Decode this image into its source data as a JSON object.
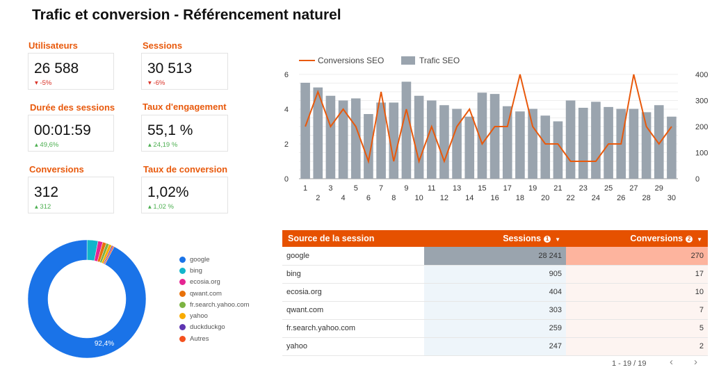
{
  "title": "Trafic et conversion - Référencement naturel",
  "kpis": [
    {
      "label": "Utilisateurs",
      "value": "26 588",
      "delta": "-5%",
      "arrow": "▾",
      "trend": "neg"
    },
    {
      "label": "Sessions",
      "value": "30 513",
      "delta": "-6%",
      "arrow": "▾",
      "trend": "neg"
    },
    {
      "label": "Durée des sessions",
      "value": "00:01:59",
      "delta": "49,6%",
      "arrow": "▴",
      "trend": "pos"
    },
    {
      "label": "Taux d'engagement",
      "value": "55,1 %",
      "delta": "24,19 %",
      "arrow": "▴",
      "trend": "pos"
    },
    {
      "label": "Conversions",
      "value": "312",
      "delta": "312",
      "arrow": "▴",
      "trend": "pos"
    },
    {
      "label": "Taux de conversion",
      "value": "1,02%",
      "delta": "1,02 %",
      "arrow": "▴",
      "trend": "pos"
    }
  ],
  "chart_data": [
    {
      "type": "bar",
      "x": [
        1,
        2,
        3,
        4,
        5,
        6,
        7,
        8,
        9,
        10,
        11,
        12,
        13,
        14,
        15,
        16,
        17,
        18,
        19,
        20,
        21,
        22,
        23,
        24,
        25,
        26,
        27,
        28,
        29,
        30
      ],
      "series": [
        {
          "name": "Conversions SEO",
          "type": "line",
          "axis": "left",
          "color": "#e8590c",
          "values": [
            3,
            5,
            3,
            4,
            3,
            1,
            5,
            1,
            4,
            1,
            3,
            1,
            3,
            4,
            2,
            3,
            3,
            6,
            3,
            2,
            2,
            1,
            1,
            1,
            2,
            2,
            6,
            3,
            2,
            3
          ]
        },
        {
          "name": "Trafic SEO",
          "type": "bar",
          "axis": "right",
          "color": "#9aa4ae",
          "values": [
            368,
            350,
            318,
            300,
            308,
            248,
            292,
            292,
            372,
            318,
            300,
            282,
            268,
            238,
            330,
            325,
            278,
            258,
            268,
            242,
            220,
            300,
            272,
            295,
            275,
            268,
            268,
            255,
            282,
            238
          ]
        }
      ],
      "left_ticks": [
        0,
        2,
        4,
        6
      ],
      "right_ticks": [
        0,
        100,
        200,
        300,
        400
      ],
      "ylim_left": [
        0,
        6
      ],
      "ylim_right": [
        0,
        400
      ],
      "legend": "top-left"
    },
    {
      "type": "pie",
      "donut": true,
      "categories": [
        "google",
        "bing",
        "ecosia.org",
        "qwant.com",
        "fr.search.yahoo.com",
        "yahoo",
        "duckduckgo",
        "Autres"
      ],
      "values": [
        92.4,
        3.0,
        1.3,
        1.0,
        0.8,
        0.8,
        0.35,
        0.35
      ],
      "colors": [
        "#1a73e8",
        "#12b5cb",
        "#e52592",
        "#e8710a",
        "#7cb342",
        "#f9ab00",
        "#5e35b1",
        "#f4511e"
      ],
      "slice_label": "92,4%"
    }
  ],
  "table": {
    "columns": [
      "Source de la session",
      "Sessions",
      "Conversions"
    ],
    "rows": [
      [
        "google",
        "28 241",
        "270"
      ],
      [
        "bing",
        "905",
        "17"
      ],
      [
        "ecosia.org",
        "404",
        "10"
      ],
      [
        "qwant.com",
        "303",
        "7"
      ],
      [
        "fr.search.yahoo.com",
        "259",
        "5"
      ],
      [
        "yahoo",
        "247",
        "2"
      ]
    ],
    "pager": "1 - 19 / 19",
    "prev_icon": "chevron-left-icon",
    "next_icon": "chevron-right-icon"
  }
}
